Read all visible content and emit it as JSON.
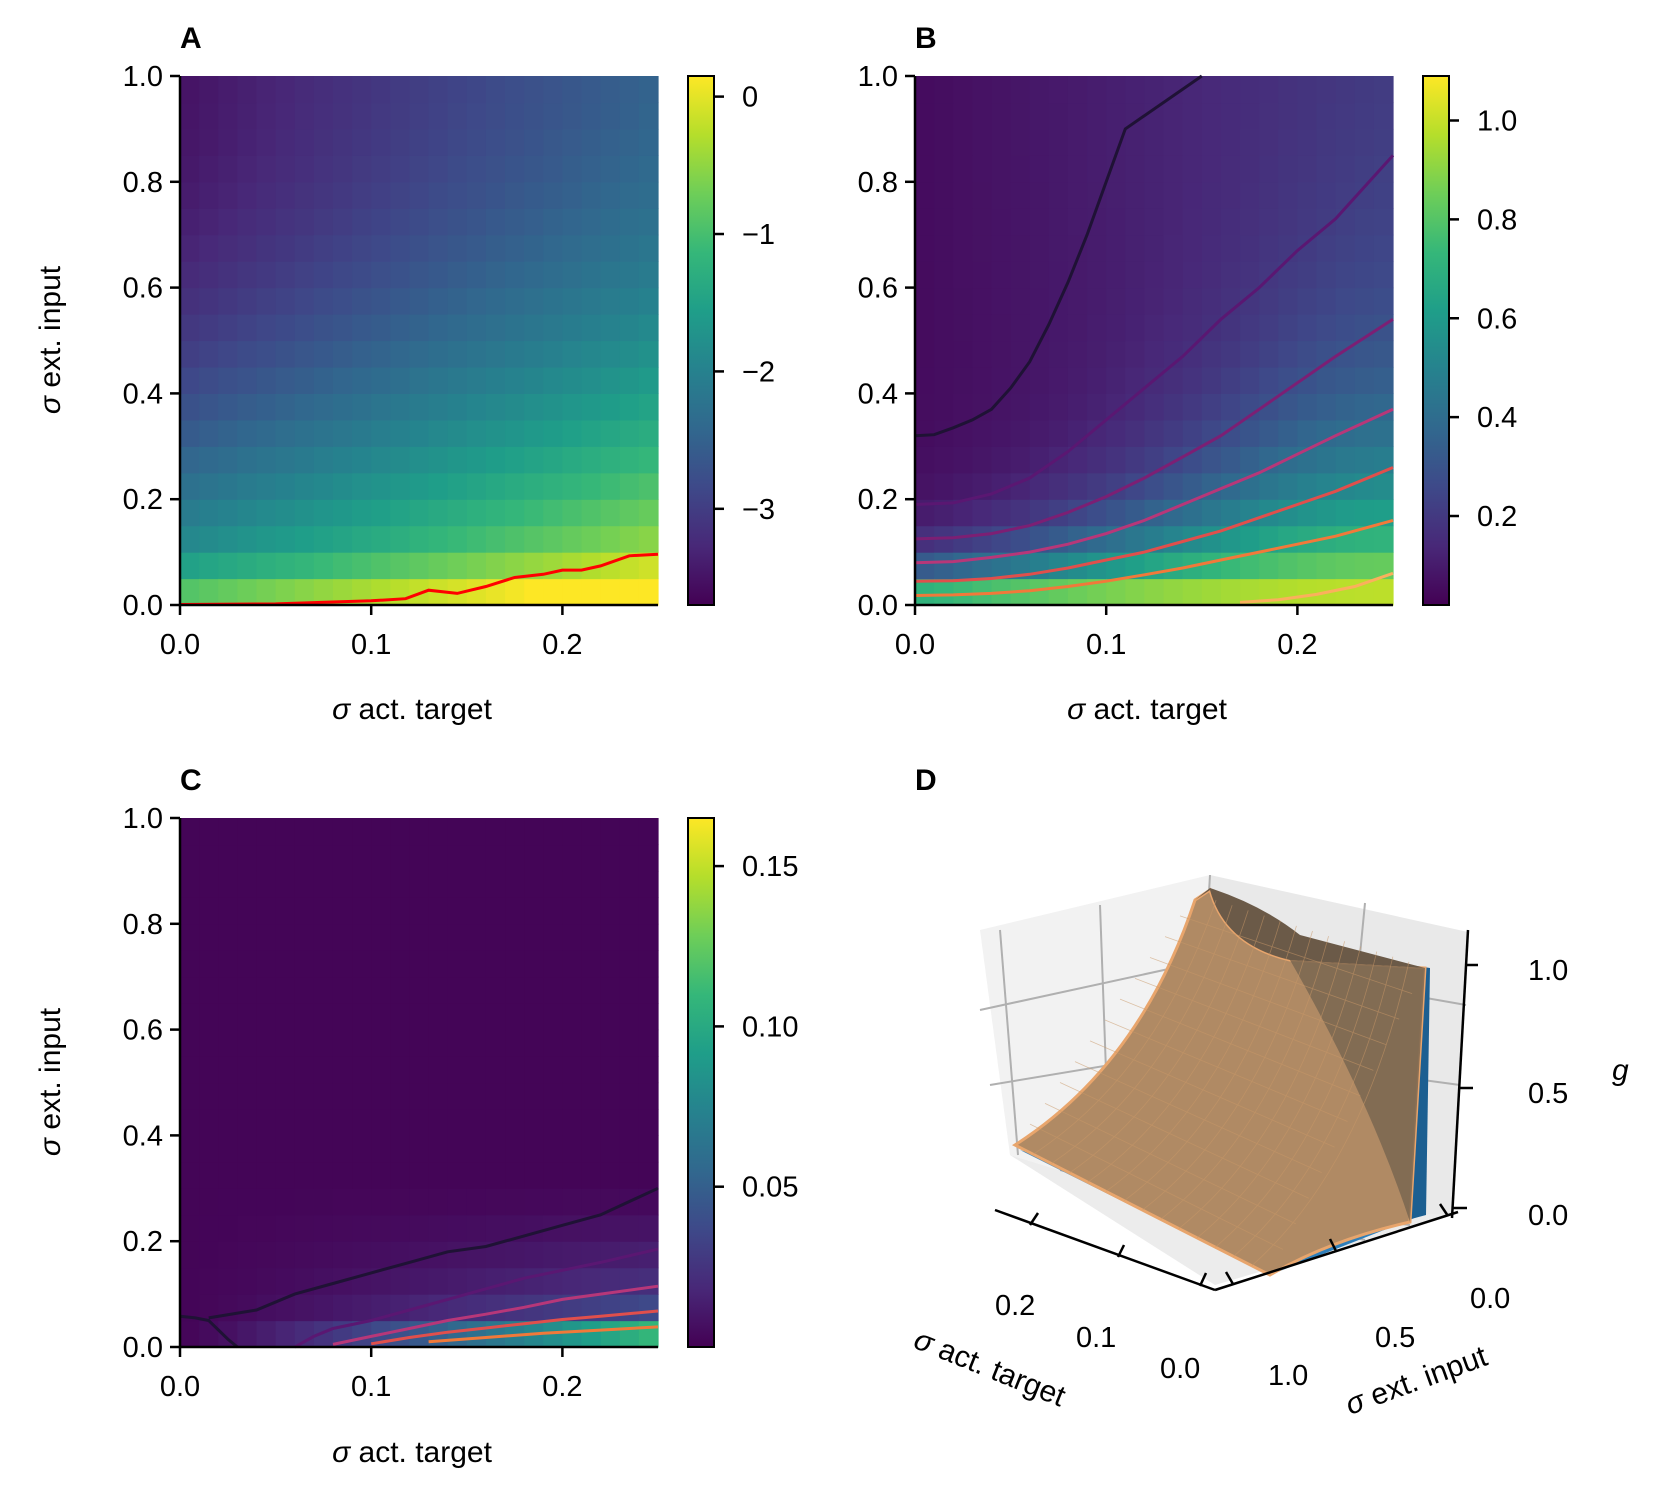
{
  "colormap": {
    "name": "viridis",
    "stops": [
      "#440154",
      "#482878",
      "#3e4989",
      "#31688e",
      "#26828e",
      "#1f9e89",
      "#35b779",
      "#6ece58",
      "#b5de2b",
      "#fde725"
    ]
  },
  "chart_data": [
    {
      "panel": "A",
      "type": "heatmap",
      "title": "",
      "xlabel_greek": "σ",
      "xlabel": " act. target",
      "ylabel_greek": "σ",
      "ylabel": " ext. input",
      "xlim": [
        0,
        0.25
      ],
      "ylim": [
        0,
        1.0
      ],
      "xticks": [
        "0.0",
        "0.1",
        "0.2"
      ],
      "xtick_values": [
        0,
        0.1,
        0.2
      ],
      "yticks": [
        "0.0",
        "0.2",
        "0.4",
        "0.6",
        "0.8",
        "1.0"
      ],
      "ytick_values": [
        0,
        0.2,
        0.4,
        0.6,
        0.8,
        1.0
      ],
      "grid_x_cells": 25,
      "grid_y_cells": 20,
      "colorbar": {
        "range": [
          -3.7,
          0.15
        ],
        "ticks": [
          "0",
          "−1",
          "−2",
          "−3"
        ],
        "tick_values": [
          0,
          -1,
          -2,
          -3
        ]
      },
      "surface_note": "value rises towards low ext. input and high act. target",
      "contours": [
        {
          "color": "#ff0000",
          "points": [
            [
              0,
              0.001
            ],
            [
              0.05,
              0.002
            ],
            [
              0.1,
              0.008
            ],
            [
              0.118,
              0.012
            ],
            [
              0.13,
              0.028
            ],
            [
              0.145,
              0.022
            ],
            [
              0.16,
              0.035
            ],
            [
              0.175,
              0.052
            ],
            [
              0.19,
              0.058
            ],
            [
              0.2,
              0.066
            ],
            [
              0.21,
              0.066
            ],
            [
              0.22,
              0.074
            ],
            [
              0.235,
              0.093
            ],
            [
              0.25,
              0.096
            ]
          ]
        }
      ]
    },
    {
      "panel": "B",
      "type": "heatmap",
      "title": "",
      "xlabel_greek": "σ",
      "xlabel": " act. target",
      "xlim": [
        0,
        0.25
      ],
      "ylim": [
        0,
        1.0
      ],
      "xticks": [
        "0.0",
        "0.1",
        "0.2"
      ],
      "xtick_values": [
        0,
        0.1,
        0.2
      ],
      "yticks": [
        "0.0",
        "0.2",
        "0.4",
        "0.6",
        "0.8",
        "1.0"
      ],
      "ytick_values": [
        0,
        0.2,
        0.4,
        0.6,
        0.8,
        1.0
      ],
      "grid_x_cells": 25,
      "grid_y_cells": 20,
      "colorbar": {
        "range": [
          0.02,
          1.09
        ],
        "ticks": [
          "1.0",
          "0.8",
          "0.6",
          "0.4",
          "0.2"
        ],
        "tick_values": [
          1.0,
          0.8,
          0.6,
          0.4,
          0.2
        ]
      },
      "contours": [
        {
          "color": "#1f1235",
          "points": [
            [
              0,
              0.32
            ],
            [
              0.01,
              0.322
            ],
            [
              0.02,
              0.335
            ],
            [
              0.03,
              0.35
            ],
            [
              0.04,
              0.37
            ],
            [
              0.05,
              0.41
            ],
            [
              0.06,
              0.46
            ],
            [
              0.07,
              0.53
            ],
            [
              0.08,
              0.61
            ],
            [
              0.09,
              0.7
            ],
            [
              0.1,
              0.8
            ],
            [
              0.11,
              0.9
            ],
            [
              0.15,
              1.0
            ]
          ]
        },
        {
          "color": "#5a1772",
          "points": [
            [
              0,
              0.19
            ],
            [
              0.02,
              0.193
            ],
            [
              0.04,
              0.21
            ],
            [
              0.06,
              0.24
            ],
            [
              0.08,
              0.29
            ],
            [
              0.1,
              0.35
            ],
            [
              0.12,
              0.41
            ],
            [
              0.14,
              0.47
            ],
            [
              0.16,
              0.54
            ],
            [
              0.18,
              0.6
            ],
            [
              0.2,
              0.67
            ],
            [
              0.22,
              0.73
            ],
            [
              0.25,
              0.85
            ]
          ]
        },
        {
          "color": "#7c1f74",
          "points": [
            [
              0,
              0.125
            ],
            [
              0.02,
              0.127
            ],
            [
              0.04,
              0.135
            ],
            [
              0.06,
              0.15
            ],
            [
              0.08,
              0.175
            ],
            [
              0.1,
              0.205
            ],
            [
              0.12,
              0.24
            ],
            [
              0.14,
              0.28
            ],
            [
              0.16,
              0.32
            ],
            [
              0.18,
              0.37
            ],
            [
              0.2,
              0.42
            ],
            [
              0.22,
              0.47
            ],
            [
              0.25,
              0.54
            ]
          ]
        },
        {
          "color": "#b73779",
          "points": [
            [
              0,
              0.08
            ],
            [
              0.02,
              0.082
            ],
            [
              0.04,
              0.09
            ],
            [
              0.06,
              0.1
            ],
            [
              0.08,
              0.115
            ],
            [
              0.1,
              0.135
            ],
            [
              0.12,
              0.16
            ],
            [
              0.14,
              0.19
            ],
            [
              0.16,
              0.22
            ],
            [
              0.18,
              0.25
            ],
            [
              0.2,
              0.285
            ],
            [
              0.22,
              0.32
            ],
            [
              0.25,
              0.37
            ]
          ]
        },
        {
          "color": "#e04f4c",
          "points": [
            [
              0,
              0.045
            ],
            [
              0.02,
              0.046
            ],
            [
              0.04,
              0.05
            ],
            [
              0.06,
              0.058
            ],
            [
              0.08,
              0.07
            ],
            [
              0.1,
              0.085
            ],
            [
              0.12,
              0.1
            ],
            [
              0.14,
              0.12
            ],
            [
              0.16,
              0.14
            ],
            [
              0.18,
              0.165
            ],
            [
              0.2,
              0.19
            ],
            [
              0.22,
              0.215
            ],
            [
              0.25,
              0.26
            ]
          ]
        },
        {
          "color": "#f1793a",
          "points": [
            [
              0,
              0.018
            ],
            [
              0.02,
              0.019
            ],
            [
              0.04,
              0.022
            ],
            [
              0.06,
              0.027
            ],
            [
              0.08,
              0.035
            ],
            [
              0.1,
              0.045
            ],
            [
              0.12,
              0.057
            ],
            [
              0.14,
              0.07
            ],
            [
              0.16,
              0.085
            ],
            [
              0.18,
              0.1
            ],
            [
              0.2,
              0.115
            ],
            [
              0.22,
              0.13
            ],
            [
              0.25,
              0.16
            ]
          ]
        },
        {
          "color": "#fbb05c",
          "points": [
            [
              0.17,
              0.005
            ],
            [
              0.19,
              0.01
            ],
            [
              0.21,
              0.02
            ],
            [
              0.23,
              0.035
            ],
            [
              0.25,
              0.06
            ]
          ]
        }
      ]
    },
    {
      "panel": "C",
      "type": "heatmap",
      "title": "",
      "xlabel_greek": "σ",
      "xlabel": " act. target",
      "ylabel_greek": "σ",
      "ylabel": " ext. input",
      "xlim": [
        0,
        0.25
      ],
      "ylim": [
        0,
        1.0
      ],
      "xticks": [
        "0.0",
        "0.1",
        "0.2"
      ],
      "xtick_values": [
        0,
        0.1,
        0.2
      ],
      "yticks": [
        "0.0",
        "0.2",
        "0.4",
        "0.6",
        "0.8",
        "1.0"
      ],
      "ytick_values": [
        0,
        0.2,
        0.4,
        0.6,
        0.8,
        1.0
      ],
      "grid_x_cells": 25,
      "grid_y_cells": 20,
      "colorbar": {
        "range": [
          0.0,
          0.165
        ],
        "ticks": [
          "0.15",
          "0.10",
          "0.05"
        ],
        "tick_values": [
          0.15,
          0.1,
          0.05
        ]
      },
      "contours": [
        {
          "color": "#1f1235",
          "points": [
            [
              0,
              0.058
            ],
            [
              0.008,
              0.055
            ],
            [
              0.015,
              0.05
            ],
            [
              0.025,
              0.015
            ],
            [
              0.03,
              0.0
            ]
          ]
        },
        {
          "color": "#1f1235",
          "points": [
            [
              0.015,
              0.055
            ],
            [
              0.04,
              0.07
            ],
            [
              0.06,
              0.1
            ],
            [
              0.08,
              0.12
            ],
            [
              0.1,
              0.14
            ],
            [
              0.12,
              0.16
            ],
            [
              0.14,
              0.18
            ],
            [
              0.16,
              0.19
            ],
            [
              0.18,
              0.21
            ],
            [
              0.2,
              0.23
            ],
            [
              0.22,
              0.25
            ],
            [
              0.25,
              0.3
            ]
          ]
        },
        {
          "color": "#5a1772",
          "points": [
            [
              0.06,
              0.0
            ],
            [
              0.07,
              0.02
            ],
            [
              0.08,
              0.035
            ],
            [
              0.1,
              0.05
            ],
            [
              0.12,
              0.07
            ],
            [
              0.14,
              0.09
            ],
            [
              0.16,
              0.11
            ],
            [
              0.18,
              0.13
            ],
            [
              0.2,
              0.145
            ],
            [
              0.22,
              0.16
            ],
            [
              0.25,
              0.185
            ]
          ]
        },
        {
          "color": "#b73779",
          "points": [
            [
              0.08,
              0.005
            ],
            [
              0.1,
              0.02
            ],
            [
              0.12,
              0.035
            ],
            [
              0.14,
              0.05
            ],
            [
              0.16,
              0.062
            ],
            [
              0.18,
              0.075
            ],
            [
              0.2,
              0.09
            ],
            [
              0.22,
              0.1
            ],
            [
              0.25,
              0.115
            ]
          ]
        },
        {
          "color": "#e04f4c",
          "points": [
            [
              0.1,
              0.006
            ],
            [
              0.12,
              0.018
            ],
            [
              0.14,
              0.028
            ],
            [
              0.16,
              0.036
            ],
            [
              0.18,
              0.044
            ],
            [
              0.2,
              0.052
            ],
            [
              0.22,
              0.058
            ],
            [
              0.25,
              0.068
            ]
          ]
        },
        {
          "color": "#f1793a",
          "points": [
            [
              0.13,
              0.01
            ],
            [
              0.16,
              0.018
            ],
            [
              0.19,
              0.026
            ],
            [
              0.22,
              0.032
            ],
            [
              0.25,
              0.038
            ]
          ]
        }
      ]
    },
    {
      "panel": "D",
      "type": "surface3d",
      "title": "",
      "xlabel_greek": "σ",
      "xlabel": " act. target",
      "ylabel_greek": "σ",
      "ylabel": " ext. input",
      "zlabel": "g",
      "xticks": [
        "0.2",
        "0.1",
        "0.0"
      ],
      "yticks": [
        "0.0",
        "0.5",
        "1.0"
      ],
      "zticks": [
        "0.0",
        "0.5",
        "1.0"
      ],
      "series": [
        {
          "name": "",
          "color": "#1f77b4"
        },
        {
          "name": "",
          "color": "#e8a56c"
        }
      ]
    }
  ]
}
